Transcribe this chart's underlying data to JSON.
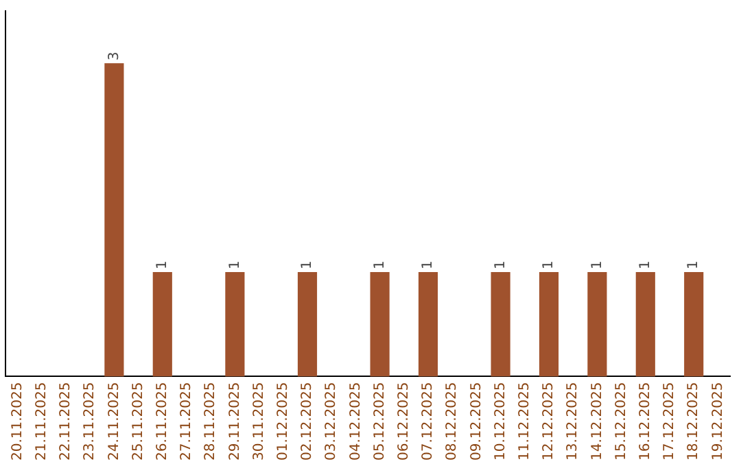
{
  "chart_data": {
    "type": "bar",
    "categories": [
      "20.11.2025",
      "21.11.2025",
      "22.11.2025",
      "23.11.2025",
      "24.11.2025",
      "25.11.2025",
      "26.11.2025",
      "27.11.2025",
      "28.11.2025",
      "29.11.2025",
      "30.11.2025",
      "01.12.2025",
      "02.12.2025",
      "03.12.2025",
      "04.12.2025",
      "05.12.2025",
      "06.12.2025",
      "07.12.2025",
      "08.12.2025",
      "09.12.2025",
      "10.12.2025",
      "11.12.2025",
      "12.12.2025",
      "13.12.2025",
      "14.12.2025",
      "15.12.2025",
      "16.12.2025",
      "17.12.2025",
      "18.12.2025",
      "19.12.2025"
    ],
    "values": [
      0,
      0,
      0,
      0,
      3,
      0,
      1,
      0,
      0,
      1,
      0,
      0,
      1,
      0,
      0,
      1,
      0,
      1,
      0,
      0,
      1,
      0,
      1,
      0,
      1,
      0,
      1,
      0,
      1,
      0
    ],
    "value_labels": [
      null,
      null,
      null,
      null,
      "3",
      null,
      "1",
      null,
      null,
      "1",
      null,
      null,
      "1",
      null,
      null,
      "1",
      null,
      "1",
      null,
      null,
      "1",
      null,
      "1",
      null,
      "1",
      null,
      "1",
      null,
      "1",
      null
    ],
    "color": "#a0522d",
    "tick_labels": "x",
    "grid": false,
    "legend": false
  }
}
